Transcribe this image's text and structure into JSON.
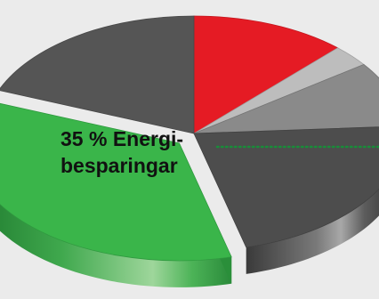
{
  "chart_data": {
    "type": "pie",
    "style": "3d-exploded",
    "slices": [
      {
        "value": 12,
        "color": "#e51b24"
      },
      {
        "value": 3,
        "color": "#bdbdbd"
      },
      {
        "value": 9,
        "color": "#8a8a8a"
      },
      {
        "value": 22,
        "color": "#4d4d4d"
      },
      {
        "value": 35,
        "color": "#3ab54a",
        "highlighted": true,
        "label_lines": [
          "35 % Energi-",
          "besparingar"
        ]
      },
      {
        "value": 19,
        "color": "#555555"
      }
    ],
    "annotation": {
      "leader_line": "dotted",
      "color": "#1a8c3a"
    }
  }
}
